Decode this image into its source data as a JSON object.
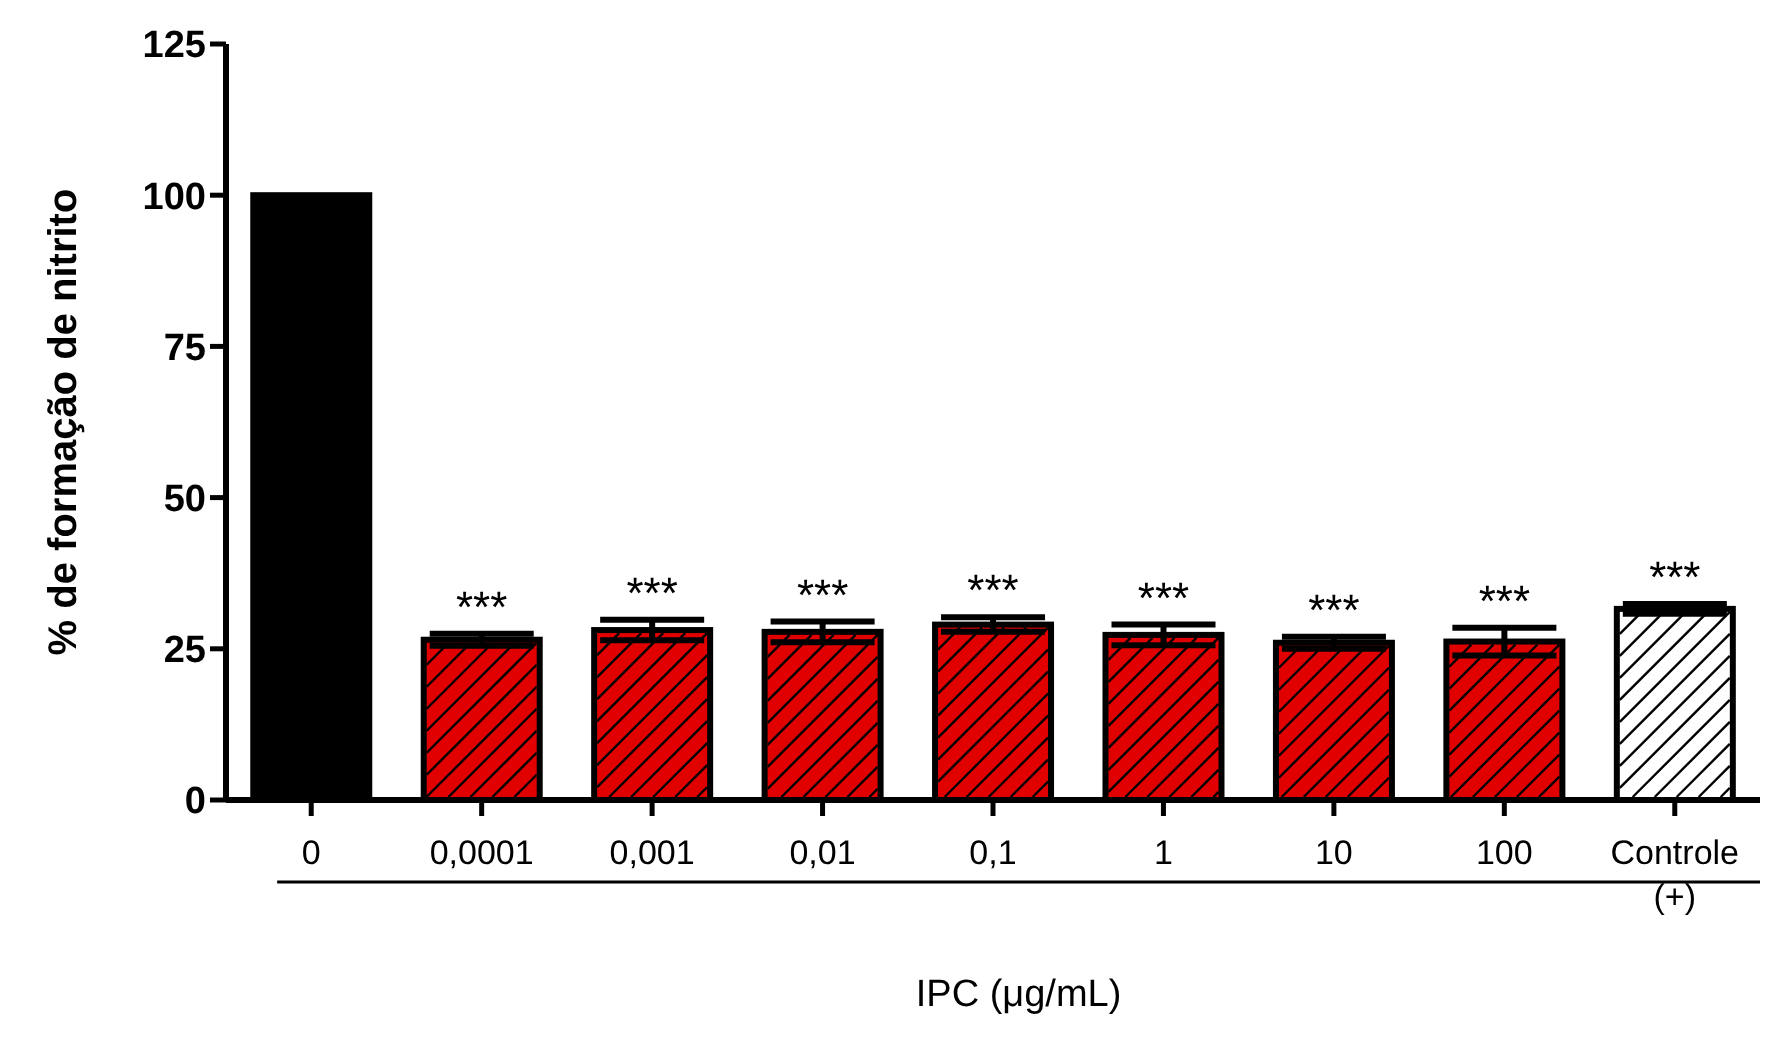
{
  "chart_data": {
    "type": "bar",
    "ylabel": "% de formação de nitrito",
    "xlabel": "IPC (μg/mL)",
    "categories": [
      "0",
      "0,0001",
      "0,001",
      "0,01",
      "0,1",
      "1",
      "10",
      "100",
      "Controle (+)"
    ],
    "values": [
      100,
      26.5,
      28.1,
      27.8,
      29.0,
      27.3,
      26.0,
      26.2,
      31.6
    ],
    "errors": [
      null,
      1.0,
      1.7,
      1.7,
      1.2,
      1.7,
      1.0,
      2.3,
      0.8
    ],
    "colors": [
      "#000000",
      "#e00000",
      "#e00000",
      "#e00000",
      "#e00000",
      "#e00000",
      "#e00000",
      "#e00000",
      "#ffffff"
    ],
    "ylim": [
      0,
      125
    ],
    "yticks": [
      0,
      25,
      50,
      75,
      100,
      125
    ],
    "grid": false,
    "legend": false,
    "annotations": [
      {
        "text": "***",
        "x": "0,0001",
        "y": 27.5
      },
      {
        "text": "***",
        "x": "0,001",
        "y": 29.8
      },
      {
        "text": "***",
        "x": "0,01",
        "y": 29.5
      },
      {
        "text": "***",
        "x": "0,1",
        "y": 30.2
      },
      {
        "text": "***",
        "x": "1",
        "y": 29.0
      },
      {
        "text": "***",
        "x": "10",
        "y": 27.0
      },
      {
        "text": "***",
        "x": "100",
        "y": 28.5
      },
      {
        "text": "***",
        "x": "Controle (+)",
        "y": 32.4
      }
    ]
  }
}
